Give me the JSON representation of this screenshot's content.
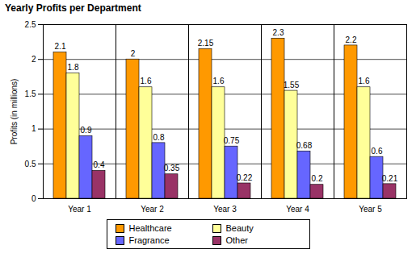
{
  "chart_data": {
    "type": "bar",
    "title": "Yearly Profits per Department",
    "ylabel": "Profits (in millions)",
    "categories": [
      "Year 1",
      "Year 2",
      "Year 3",
      "Year 4",
      "Year 5"
    ],
    "series": [
      {
        "name": "Healthcare",
        "color": "#FF9900",
        "values": [
          2.1,
          2,
          2.15,
          2.3,
          2.2
        ]
      },
      {
        "name": "Beauty",
        "color": "#FFFF99",
        "values": [
          1.8,
          1.6,
          1.6,
          1.55,
          1.6
        ]
      },
      {
        "name": "Fragrance",
        "color": "#6666FF",
        "values": [
          0.9,
          0.8,
          0.75,
          0.68,
          0.6
        ]
      },
      {
        "name": "Other",
        "color": "#993366",
        "values": [
          0.4,
          0.35,
          0.22,
          0.2,
          0.21
        ]
      }
    ],
    "ylim": [
      0,
      2.5
    ],
    "yticks": [
      0,
      0.5,
      1,
      1.5,
      2,
      2.5
    ],
    "grid": true,
    "data_labels": true,
    "legend": "bottom"
  }
}
